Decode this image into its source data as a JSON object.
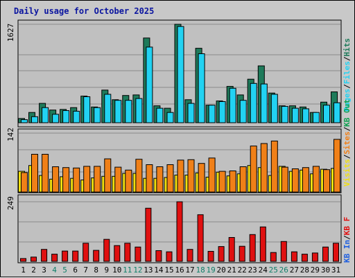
{
  "title": "Daily usage for October 2025",
  "colors": {
    "hits": "#1e7a5a",
    "files": "#22d2f2",
    "pages": "#22d2f2",
    "visits": "#f0e010",
    "sites": "#f08018",
    "kbin": "#2060e0",
    "kbout": "#10a050",
    "kbf": "#e01010",
    "weekend": "#10806a",
    "weekday": "#000000",
    "slash": "#000000"
  },
  "panels": {
    "hits": {
      "ymax_label": "1627",
      "legend": [
        "Pages",
        "Files",
        "Hits"
      ]
    },
    "visits": {
      "ymax_label": "142",
      "legend": [
        "Visits",
        "Sites",
        "KB Out"
      ]
    },
    "kb": {
      "ymax_label": "249",
      "legend": [
        "KB In",
        "KB F"
      ]
    }
  },
  "day_labels": [
    "1",
    "2",
    "3",
    "4",
    "5",
    "6",
    "7",
    "8",
    "9",
    "10",
    "11",
    "12",
    "13",
    "14",
    "15",
    "16",
    "17",
    "18",
    "19",
    "20",
    "21",
    "22",
    "23",
    "24",
    "25",
    "26",
    "27",
    "28",
    "29",
    "30",
    "31"
  ],
  "weekend_days": [
    4,
    5,
    11,
    12,
    18,
    19,
    25,
    26
  ],
  "chart_data": [
    {
      "type": "bar",
      "name": "hits-files",
      "x": [
        1,
        2,
        3,
        4,
        5,
        6,
        7,
        8,
        9,
        10,
        11,
        12,
        13,
        14,
        15,
        16,
        17,
        18,
        19,
        20,
        21,
        22,
        23,
        24,
        25,
        26,
        27,
        28,
        29,
        30,
        31
      ],
      "ylim": [
        0,
        1627
      ],
      "series": [
        {
          "name": "Hits",
          "values": [
            70,
            170,
            320,
            210,
            220,
            250,
            440,
            260,
            540,
            380,
            450,
            460,
            1400,
            280,
            240,
            1627,
            380,
            1230,
            290,
            360,
            600,
            460,
            720,
            940,
            490,
            280,
            280,
            260,
            170,
            340,
            510
          ]
        },
        {
          "name": "Files",
          "values": [
            50,
            100,
            250,
            140,
            200,
            190,
            430,
            250,
            470,
            370,
            370,
            400,
            1250,
            240,
            170,
            1590,
            320,
            1140,
            290,
            350,
            570,
            370,
            650,
            640,
            470,
            270,
            240,
            230,
            170,
            290,
            330
          ]
        }
      ]
    },
    {
      "type": "bar",
      "name": "visits-sites",
      "x": [
        1,
        2,
        3,
        4,
        5,
        6,
        7,
        8,
        9,
        10,
        11,
        12,
        13,
        14,
        15,
        16,
        17,
        18,
        19,
        20,
        21,
        22,
        23,
        24,
        25,
        26,
        27,
        28,
        29,
        30,
        31
      ],
      "ylim": [
        0,
        142
      ],
      "series": [
        {
          "name": "Visits",
          "values": [
            50,
            64,
            40,
            31,
            37,
            33,
            29,
            34,
            38,
            38,
            45,
            45,
            33,
            33,
            35,
            41,
            41,
            46,
            36,
            48,
            39,
            44,
            64,
            59,
            40,
            62,
            50,
            53,
            44,
            55,
            57
          ]
        },
        {
          "name": "Sites",
          "values": [
            47,
            91,
            91,
            61,
            59,
            58,
            62,
            62,
            80,
            60,
            53,
            79,
            66,
            61,
            66,
            77,
            78,
            69,
            82,
            50,
            51,
            61,
            111,
            117,
            123,
            60,
            56,
            59,
            62,
            54,
            127
          ]
        }
      ]
    },
    {
      "type": "bar",
      "name": "kb",
      "x": [
        1,
        2,
        3,
        4,
        5,
        6,
        7,
        8,
        9,
        10,
        11,
        12,
        13,
        14,
        15,
        16,
        17,
        18,
        19,
        20,
        21,
        22,
        23,
        24,
        25,
        26,
        27,
        28,
        29,
        30,
        31
      ],
      "ylim": [
        0,
        249
      ],
      "series": [
        {
          "name": "KB F",
          "values": [
            12,
            18,
            50,
            30,
            43,
            43,
            76,
            46,
            92,
            66,
            76,
            60,
            222,
            45,
            40,
            249,
            50,
            195,
            42,
            62,
            100,
            63,
            112,
            144,
            37,
            83,
            40,
            30,
            35,
            60,
            76
          ]
        }
      ]
    }
  ]
}
